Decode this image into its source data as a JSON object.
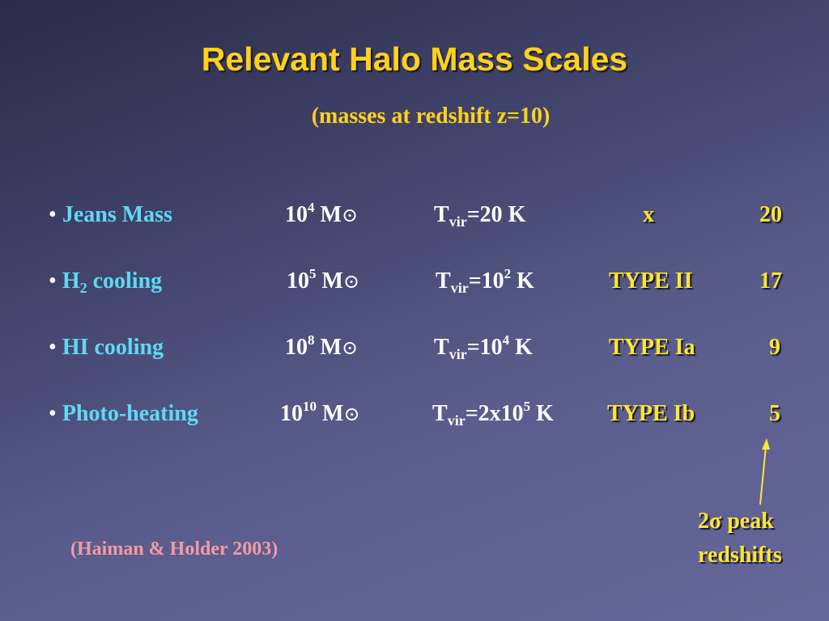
{
  "slide": {
    "title": "Relevant Halo Mass Scales",
    "subtitle": "(masses at redshift z=10)"
  },
  "rows": [
    {
      "bullet": "•",
      "name_text": "Jeans Mass",
      "mass_base": "10",
      "mass_exp": "4",
      "mass_unit": "M",
      "sun_symbol": "⊙",
      "t_prefix": "T",
      "t_sub": "vir",
      "t_eq": "=20 K",
      "t_exp": "",
      "t_unit": "",
      "type": "x",
      "peak": "20"
    },
    {
      "bullet": "•",
      "name_text": "H",
      "name_sub": "2",
      "name_suffix": " cooling",
      "mass_base": "10",
      "mass_exp": "5",
      "mass_unit": "M",
      "sun_symbol": "⊙",
      "t_prefix": "T",
      "t_sub": "vir",
      "t_eq": "=10",
      "t_exp": "2",
      "t_unit": " K",
      "type": "TYPE II",
      "peak": "17"
    },
    {
      "bullet": "•",
      "name_text": "HI cooling",
      "mass_base": "10",
      "mass_exp": "8",
      "mass_unit": "M",
      "sun_symbol": "⊙",
      "t_prefix": "T",
      "t_sub": "vir",
      "t_eq": "=10",
      "t_exp": "4",
      "t_unit": " K",
      "type": "TYPE Ia",
      "peak": "9"
    },
    {
      "bullet": "•",
      "name_text": "Photo-heating",
      "mass_base": "10",
      "mass_exp": "10",
      "mass_unit": "M",
      "sun_symbol": "⊙",
      "t_prefix": "T",
      "t_sub": "vir",
      "t_eq": "=2x10",
      "t_exp": "5",
      "t_unit": " K",
      "type": "TYPE Ib",
      "peak": "5"
    }
  ],
  "annotation": {
    "note_line1_prefix": "2",
    "note_sigma": "σ",
    "note_line1_suffix": " peak",
    "note_line2": "redshifts"
  },
  "citation": "(Haiman & Holder 2003)",
  "colors": {
    "title": "#ffd21a",
    "name": "#5fd9f2",
    "type": "#ffe632",
    "citation": "#f39aa4"
  }
}
